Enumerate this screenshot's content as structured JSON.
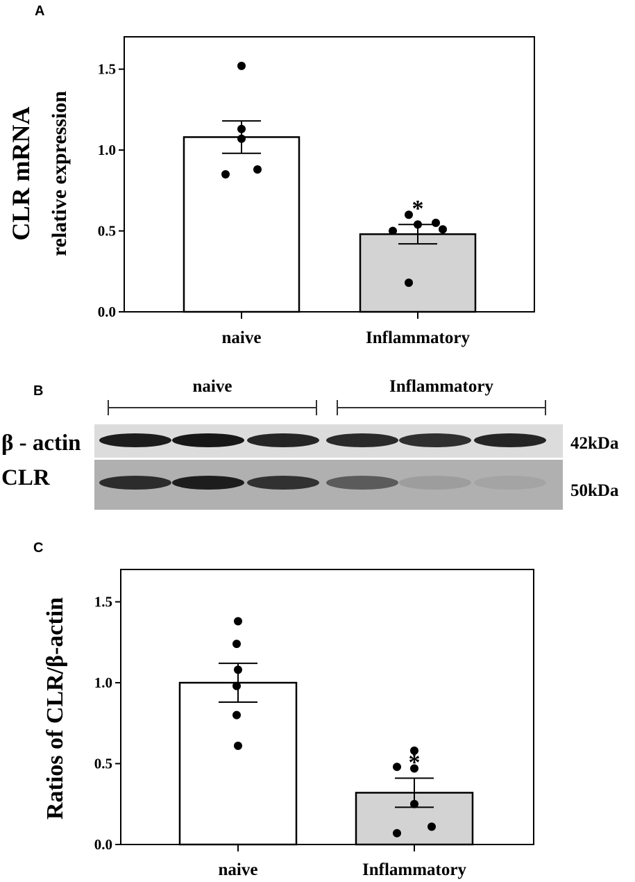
{
  "chart_data": [
    {
      "panel": "A",
      "type": "bar",
      "categories": [
        "naive",
        "Inflammatory"
      ],
      "values": [
        1.08,
        0.48
      ],
      "sem": [
        0.1,
        0.06
      ],
      "points": [
        [
          1.52,
          1.13,
          1.07,
          0.88,
          0.85
        ],
        [
          0.6,
          0.55,
          0.54,
          0.51,
          0.5,
          0.18
        ]
      ],
      "bar_colors": [
        "#ffffff",
        "#d3d3d3"
      ],
      "significance": [
        "",
        "*"
      ],
      "ylabel_line1": "CLR mRNA",
      "ylabel_line2": "relative expression",
      "ylim": [
        0,
        1.7
      ],
      "yticks": [
        "0.0",
        "0.5",
        "1.0",
        "1.5"
      ]
    },
    {
      "panel": "C",
      "type": "bar",
      "categories": [
        "naive",
        "Inflammatory"
      ],
      "values": [
        1.0,
        0.32
      ],
      "sem": [
        0.12,
        0.09
      ],
      "points": [
        [
          1.38,
          1.24,
          1.08,
          0.98,
          0.8,
          0.61
        ],
        [
          0.58,
          0.48,
          0.47,
          0.25,
          0.11,
          0.07
        ]
      ],
      "bar_colors": [
        "#ffffff",
        "#d3d3d3"
      ],
      "significance": [
        "",
        "*"
      ],
      "ylabel": "Ratios of CLR/β-actin",
      "ylim": [
        0,
        1.7
      ],
      "yticks": [
        "0.0",
        "0.5",
        "1.0",
        "1.5"
      ]
    }
  ],
  "blot": {
    "panel": "B",
    "group_labels": [
      "naive",
      "Inflammatory"
    ],
    "row_labels": [
      "β - actin",
      "CLR"
    ],
    "size_labels": [
      "42kDa",
      "50kDa"
    ],
    "lanes": 6,
    "beta_actin_intensity": [
      0.95,
      0.97,
      0.9,
      0.88,
      0.85,
      0.9
    ],
    "clr_intensity": [
      0.85,
      0.95,
      0.82,
      0.55,
      0.12,
      0.08
    ]
  }
}
